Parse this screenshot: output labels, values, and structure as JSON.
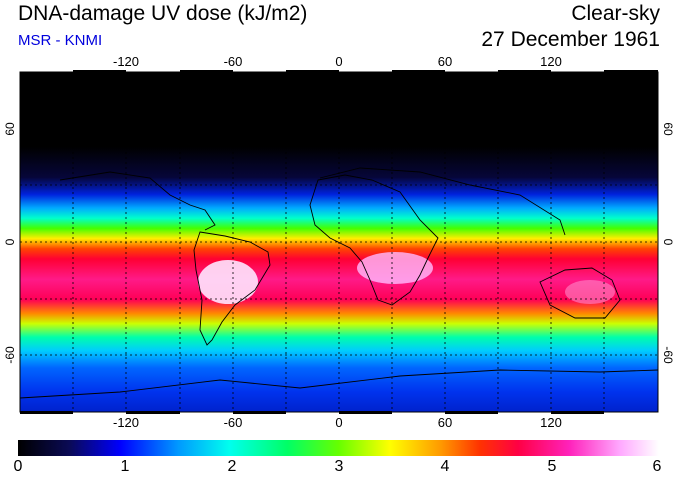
{
  "header": {
    "title": "DNA-damage UV dose (kJ/m2)",
    "subtitle": "MSR - KNMI",
    "sky_condition": "Clear-sky",
    "date": "27 December 1961"
  },
  "colors": {
    "subtitle": "#0000dd",
    "scale": [
      "#000000",
      "#0a0a55",
      "#0000ff",
      "#0099ff",
      "#00ffee",
      "#00ff66",
      "#66ff00",
      "#ffff00",
      "#ff9900",
      "#ff3300",
      "#ff0044",
      "#ff22bb",
      "#ffaaff",
      "#ffffff"
    ]
  },
  "map": {
    "longitude_ticks": [
      "-120",
      "-60",
      "0",
      "60",
      "120"
    ],
    "longitude_values": [
      -120,
      -60,
      0,
      60,
      120
    ],
    "latitude_ticks": [
      "60",
      "0",
      "-60"
    ],
    "latitude_values": [
      60,
      0,
      -60
    ],
    "lon_range": [
      -180,
      180
    ],
    "lat_range": [
      -90,
      90
    ]
  },
  "colorbar": {
    "labels": [
      "0",
      "1",
      "2",
      "3",
      "4",
      "5",
      "6"
    ],
    "min": 0,
    "max": 6
  }
}
